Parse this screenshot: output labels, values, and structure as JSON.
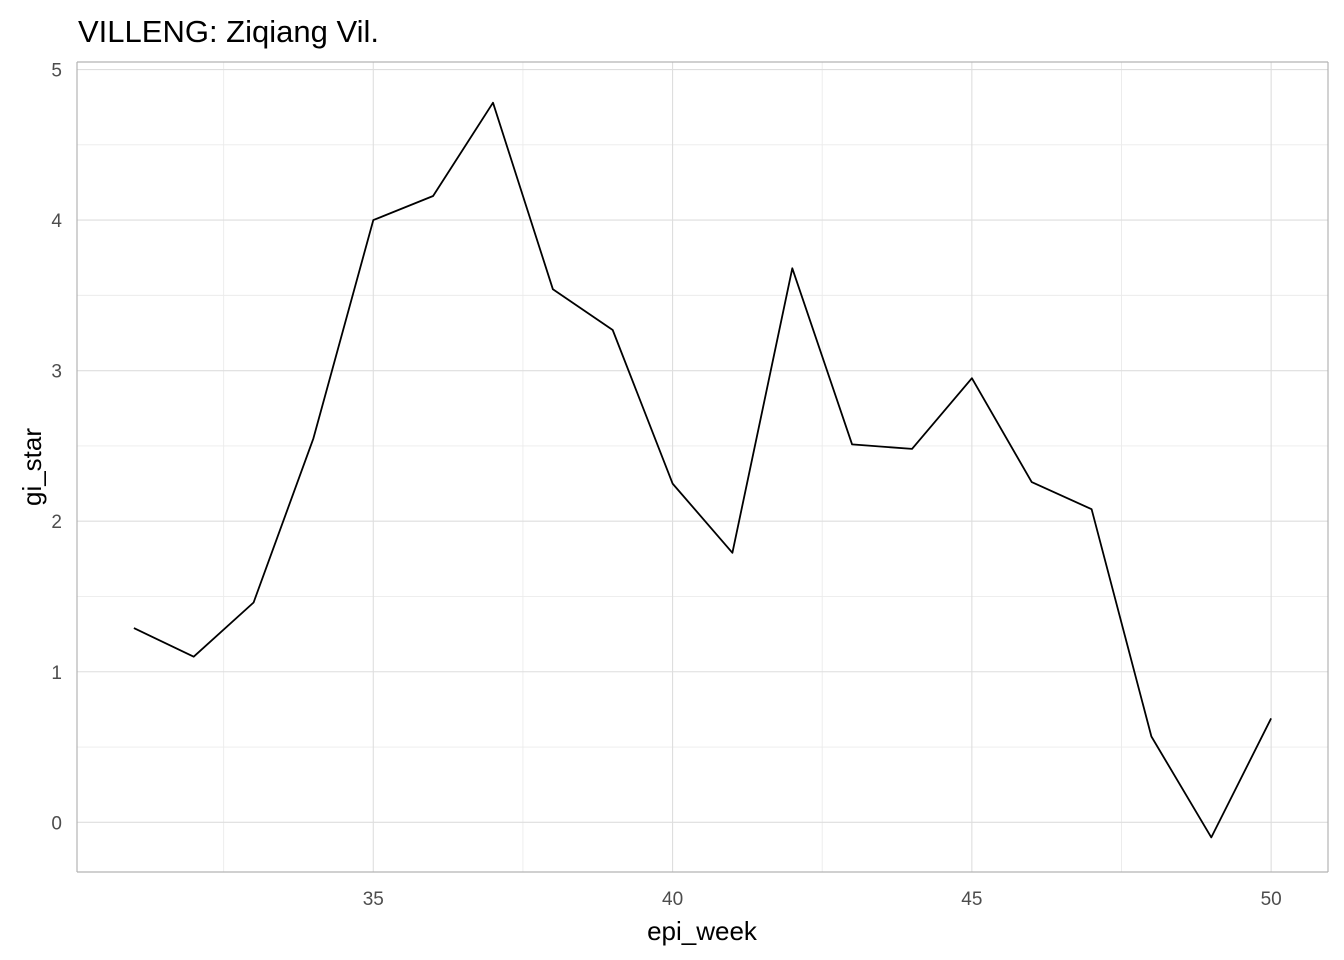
{
  "chart_data": {
    "type": "line",
    "title": "VILLENG: Ziqiang Vil.",
    "xlabel": "epi_week",
    "ylabel": "gi_star",
    "xlim": [
      30.05,
      50.95
    ],
    "ylim": [
      -0.33,
      5.05
    ],
    "x_ticks": [
      35,
      40,
      45,
      50
    ],
    "x_tick_labels": [
      "35",
      "40",
      "45",
      "50"
    ],
    "x_minor_ticks": [
      32.5,
      37.5,
      42.5,
      47.5
    ],
    "y_ticks": [
      0,
      1,
      2,
      3,
      4,
      5
    ],
    "y_tick_labels": [
      "0",
      "1",
      "2",
      "3",
      "4",
      "5"
    ],
    "y_minor_ticks": [
      0.5,
      1.5,
      2.5,
      3.5,
      4.5
    ],
    "grid": true,
    "series": [
      {
        "name": "gi_star",
        "color": "#000000",
        "x": [
          31,
          32,
          33,
          34,
          35,
          36,
          37,
          38,
          39,
          40,
          41,
          42,
          43,
          44,
          45,
          46,
          47,
          48,
          49,
          50
        ],
        "values": [
          1.29,
          1.1,
          1.46,
          2.55,
          4.0,
          4.16,
          4.78,
          3.54,
          3.27,
          2.25,
          1.79,
          3.68,
          2.51,
          2.48,
          2.95,
          2.26,
          2.08,
          0.57,
          -0.1,
          0.69
        ]
      }
    ]
  }
}
